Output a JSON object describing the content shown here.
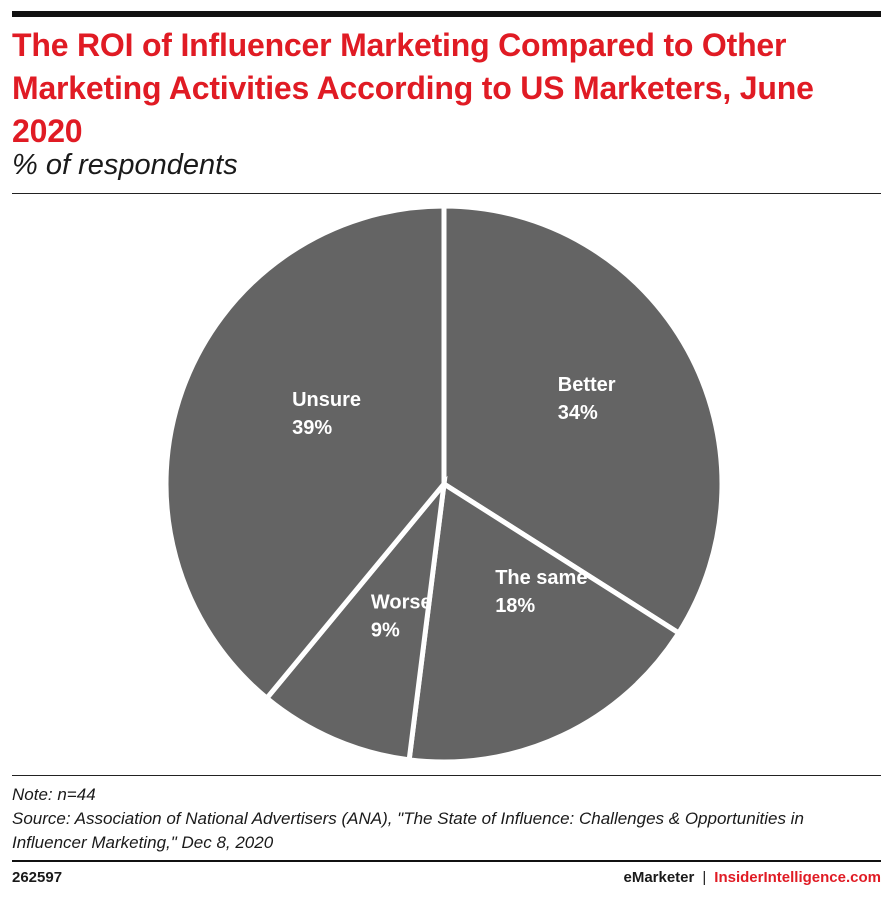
{
  "header": {
    "title": "The ROI of Influencer Marketing Compared to Other Marketing Activities According to US Marketers, June 2020",
    "subtitle": "% of respondents"
  },
  "chart_data": {
    "type": "pie",
    "title": "The ROI of Influencer Marketing Compared to Other Marketing Activities According to US Marketers, June 2020",
    "subtitle": "% of respondents",
    "unit": "%",
    "slice_color": "#646464",
    "slices": [
      {
        "label": "Better",
        "value": 34,
        "value_label": "34%"
      },
      {
        "label": "The same",
        "value": 18,
        "value_label": "18%"
      },
      {
        "label": "Worse",
        "value": 9,
        "value_label": "9%"
      },
      {
        "label": "Unsure",
        "value": 39,
        "value_label": "39%"
      }
    ]
  },
  "notes": {
    "note": "Note: n=44",
    "source": "Source: Association of National Advertisers (ANA), \"The State of Influence: Challenges & Opportunities in Influencer Marketing,\" Dec 8, 2020"
  },
  "footer": {
    "chart_id": "262597",
    "brand": "eMarketer",
    "separator": "|",
    "site": "InsiderIntelligence.com"
  },
  "colors": {
    "accent": "#e01b24",
    "text": "#1a1a1a"
  }
}
